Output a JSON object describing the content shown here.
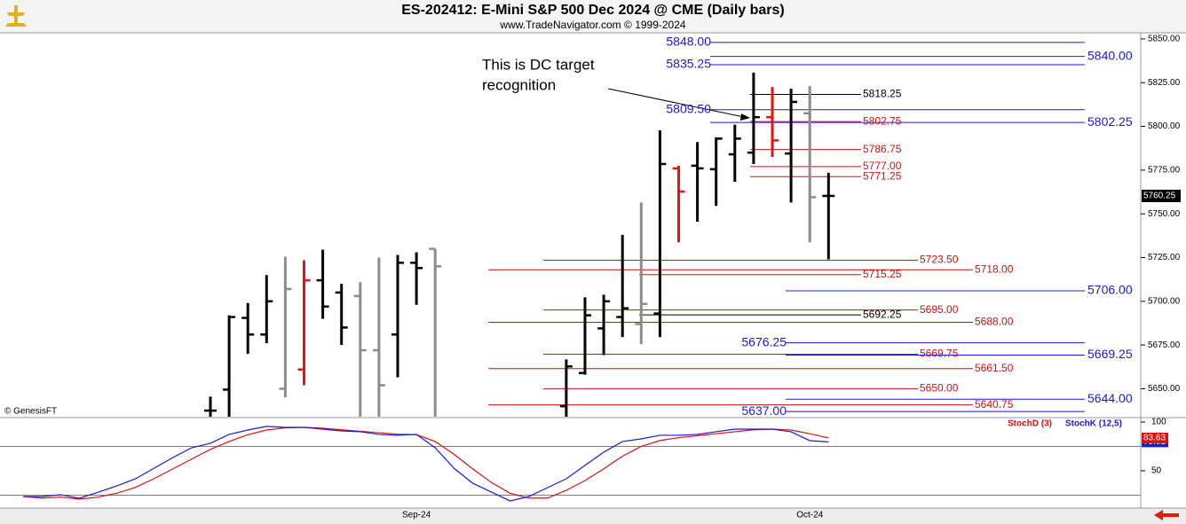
{
  "chart_data": [
    {
      "type": "ohlc",
      "title": "ES-202412:  E-Mini S&P 500 Dec 2024 @ CME  (Daily bars)",
      "subtitle": "www.TradeNavigator.com © 1999-2024",
      "source": "© GenesisFT",
      "annotation": [
        "This is DC target",
        "recognition"
      ],
      "categories": [
        null,
        null,
        null,
        null,
        null,
        null,
        null,
        null,
        null,
        null,
        null,
        null,
        null,
        null,
        null,
        null,
        null,
        null,
        null,
        null,
        null,
        "Sep-24",
        null,
        null,
        null,
        null,
        null,
        null,
        null,
        null,
        null,
        null,
        null,
        null,
        null,
        null,
        null,
        null,
        null,
        null,
        null,
        null,
        "Oct-24",
        null
      ],
      "open": [
        null,
        null,
        null,
        null,
        null,
        null,
        null,
        null,
        null,
        null,
        5637.5,
        5649.5,
        5690.5,
        5681,
        5650,
        5661,
        5712,
        5705,
        5703,
        5672,
        5681,
        5722,
        5730,
        null,
        null,
        null,
        null,
        null,
        null,
        5640,
        5659,
        5684.5,
        5691,
        5687,
        5693,
        5776,
        5777.5,
        5775.5,
        5784,
        5785,
        5805.25,
        5784.5,
        5807.5,
        5760.25
      ],
      "high": [
        null,
        null,
        null,
        null,
        null,
        null,
        null,
        null,
        null,
        null,
        5645.5,
        5692,
        5699,
        5715,
        5725.5,
        5723.5,
        5729.5,
        5710,
        5711,
        5725,
        5726.5,
        5728,
        5730,
        null,
        null,
        null,
        null,
        null,
        null,
        5666.75,
        5702.25,
        5703.75,
        5738,
        5756.5,
        5797.75,
        5777.5,
        5791,
        5793.75,
        5801,
        5830.75,
        5822.5,
        5821.5,
        5823,
        5773.5
      ],
      "low": [
        null,
        null,
        null,
        null,
        null,
        null,
        null,
        null,
        null,
        null,
        5629,
        5629,
        5670,
        5676,
        5645,
        5652,
        5690,
        5675,
        5629,
        5629,
        5656.5,
        5698,
        5629,
        null,
        null,
        null,
        null,
        null,
        null,
        5629,
        5658,
        5669.25,
        5679.5,
        5675.5,
        5679.5,
        5733.75,
        5745.5,
        5754.5,
        5768.25,
        5778.5,
        5782.5,
        5756.5,
        5733.75,
        5724
      ],
      "close": [
        null,
        null,
        null,
        null,
        null,
        null,
        null,
        null,
        null,
        null,
        5637.5,
        5691,
        5681,
        5700,
        5707,
        5712,
        5697,
        5685,
        5672,
        5652,
        5722,
        5719,
        5720,
        null,
        null,
        null,
        null,
        null,
        null,
        5662.75,
        5692,
        5700,
        5696,
        5698.5,
        5778.5,
        5762.75,
        5776,
        5793,
        5793,
        5805.25,
        5792,
        5814,
        5759.5,
        5760.25
      ],
      "colors": [
        null,
        null,
        null,
        null,
        null,
        null,
        null,
        null,
        null,
        null,
        "#000000",
        "#000000",
        "#000000",
        "#000000",
        "#8c8c8c",
        "#ee1111",
        "#000000",
        "#000000",
        "#8c8c8c",
        "#8c8c8c",
        "#000000",
        "#000000",
        "#8c8c8c",
        null,
        null,
        null,
        null,
        null,
        null,
        "#000000",
        "#000000",
        "#000000",
        "#000000",
        "#8c8c8c",
        "#000000",
        "#ee1111",
        "#000000",
        "#000000",
        "#000000",
        "#000000",
        "#ee1111",
        "#000000",
        "#8c8c8c",
        "#000000"
      ],
      "ylim": [
        5634,
        5853.5
      ],
      "yticks": [
        {
          "value": 5650,
          "label": "5650.00"
        },
        {
          "value": 5675,
          "label": "5675.00"
        },
        {
          "value": 5700,
          "label": "5700.00"
        },
        {
          "value": 5725,
          "label": "5725.00"
        },
        {
          "value": 5750,
          "label": "5750.00"
        },
        {
          "value": 5775,
          "label": "5775.00"
        },
        {
          "value": 5800,
          "label": "5800.00"
        },
        {
          "value": 5825,
          "label": "5825.00"
        },
        {
          "value": 5850,
          "label": "5850.00"
        }
      ],
      "levels": [
        {
          "value": 5848,
          "label": "5848.00",
          "color": "#1a1ad6"
        },
        {
          "value": 5840,
          "label": "5840.00",
          "color": "#1a1ad6"
        },
        {
          "value": 5835.25,
          "label": "5835.25",
          "color": "#1a1ad6"
        },
        {
          "value": 5809.5,
          "label": "5809.50",
          "color": "#1a1ad6"
        },
        {
          "value": 5802.25,
          "label": "5802.25",
          "color": "#1a1ad6"
        },
        {
          "value": 5706,
          "label": "5706.00",
          "color": "#1a1ad6"
        },
        {
          "value": 5676.25,
          "label": "5676.25",
          "color": "#1a1ad6"
        },
        {
          "value": 5669.25,
          "label": "5669.25",
          "color": "#1a1ad6"
        },
        {
          "value": 5644,
          "label": "5644.00",
          "color": "#1a1ad6"
        },
        {
          "value": 5637,
          "label": "5637.00",
          "color": "#1a1ad6"
        },
        {
          "value": 5818.25,
          "label": "5818.25",
          "color": "#000000"
        },
        {
          "value": 5802.75,
          "label": "5802.75",
          "color": "#cc1111"
        },
        {
          "value": 5786.75,
          "label": "5786.75",
          "color": "#cc1111"
        },
        {
          "value": 5777,
          "label": "5777.00",
          "color": "#cc1111"
        },
        {
          "value": 5771.25,
          "label": "5771.25",
          "color": "#cc1111"
        },
        {
          "value": 5723.5,
          "label": "5723.50",
          "color": "#cc1111"
        },
        {
          "value": 5718,
          "label": "5718.00",
          "color": "#cc1111"
        },
        {
          "value": 5715.25,
          "label": "5715.25",
          "color": "#cc1111"
        },
        {
          "value": 5695,
          "label": "5695.00",
          "color": "#cc1111"
        },
        {
          "value": 5692.25,
          "label": "5692.25",
          "color": "#000000"
        },
        {
          "value": 5688,
          "label": "5688.00",
          "color": "#cc1111"
        },
        {
          "value": 5669.75,
          "label": "5669.75",
          "color": "#cc1111"
        },
        {
          "value": 5661.5,
          "label": "5661.50",
          "color": "#cc1111"
        },
        {
          "value": 5650,
          "label": "5650.00",
          "color": "#cc1111"
        },
        {
          "value": 5640.75,
          "label": "5640.75",
          "color": "#cc1111"
        }
      ]
    },
    {
      "type": "line",
      "ylim": [
        11.8,
        103.6
      ],
      "yticks": [
        50,
        100
      ],
      "reference_lines": [
        25,
        75
      ],
      "series": [
        {
          "name": "StochD (3)",
          "color": "#dd1111",
          "values": [
            23.6,
            22,
            23,
            21,
            23,
            27,
            33,
            42,
            52,
            62,
            72,
            80,
            87,
            91.8,
            94,
            94.5,
            93.6,
            92,
            90.5,
            89,
            87.5,
            87,
            80,
            67,
            52,
            38,
            27,
            22,
            22,
            30,
            40,
            52,
            65,
            75,
            81,
            84,
            86,
            88,
            90,
            92,
            92.7,
            91.8,
            88,
            83.63
          ]
        },
        {
          "name": "StochK (12,5)",
          "color": "#1a1ad6",
          "values": [
            23.6,
            23.6,
            25.5,
            21.8,
            28,
            34.5,
            41.8,
            52.7,
            63.6,
            73.6,
            78.2,
            87.3,
            91.8,
            95.5,
            94.5,
            94.5,
            92.7,
            90.9,
            90,
            87.3,
            86.4,
            87.3,
            73.6,
            52.7,
            37.3,
            28.2,
            19.1,
            23.6,
            32.7,
            41.8,
            55.5,
            69.1,
            80,
            82.7,
            86.4,
            86.4,
            87.3,
            90,
            92.7,
            92.7,
            92.7,
            90,
            80.9,
            79.61
          ]
        }
      ]
    }
  ]
}
